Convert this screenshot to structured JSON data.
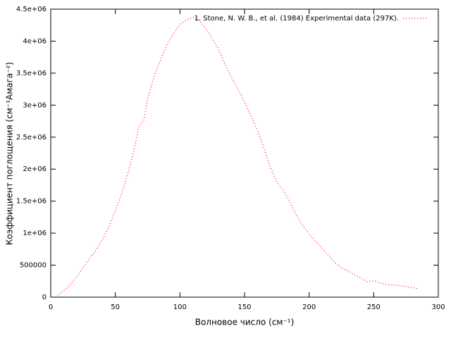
{
  "chart_data": {
    "type": "line",
    "x_label": "Волновое число (см⁻¹)",
    "y_label": "Коэффициент поглощения (см⁻¹Амага⁻²)",
    "x": [
      5,
      10,
      15,
      20,
      25,
      30,
      35,
      40,
      45,
      50,
      55,
      60,
      65,
      68,
      70,
      72,
      75,
      80,
      85,
      90,
      95,
      100,
      105,
      110,
      115,
      120,
      125,
      130,
      135,
      140,
      145,
      150,
      155,
      160,
      165,
      170,
      175,
      180,
      185,
      190,
      195,
      200,
      205,
      210,
      215,
      220,
      225,
      230,
      235,
      240,
      245,
      250,
      255,
      260,
      265,
      270,
      275,
      280,
      285
    ],
    "series": [
      {
        "name": "1. Stone, N. W. B., et al. (1984) Experimental data (297K).",
        "color": "#ff0000",
        "values": [
          20000,
          100000,
          190000,
          320000,
          460000,
          600000,
          740000,
          900000,
          1100000,
          1350000,
          1620000,
          1950000,
          2350000,
          2650000,
          2720000,
          2750000,
          3100000,
          3450000,
          3700000,
          3950000,
          4120000,
          4260000,
          4330000,
          4370000,
          4320000,
          4200000,
          4040000,
          3870000,
          3630000,
          3430000,
          3250000,
          3050000,
          2830000,
          2610000,
          2330000,
          2030000,
          1800000,
          1670000,
          1490000,
          1290000,
          1120000,
          990000,
          870000,
          770000,
          650000,
          540000,
          460000,
          410000,
          350000,
          300000,
          240000,
          260000,
          220000,
          200000,
          190000,
          180000,
          165000,
          150000,
          130000
        ]
      }
    ],
    "xlim": [
      0,
      300
    ],
    "xticks": [
      0,
      50,
      100,
      150,
      200,
      250,
      300
    ],
    "ylim": [
      0,
      4500000
    ],
    "yticks": [
      0,
      500000,
      {
        "value": 1000000,
        "label": "1e+06"
      },
      {
        "value": 1500000,
        "label": "1.5e+06"
      },
      {
        "value": 2000000,
        "label": "2e+06"
      },
      {
        "value": 2500000,
        "label": "2.5e+06"
      },
      {
        "value": 3000000,
        "label": "3e+06"
      },
      {
        "value": 3500000,
        "label": "3.5e+06"
      },
      {
        "value": 4000000,
        "label": "4e+06"
      },
      {
        "value": 4500000,
        "label": "4.5e+06"
      }
    ],
    "legend": "top-right"
  }
}
